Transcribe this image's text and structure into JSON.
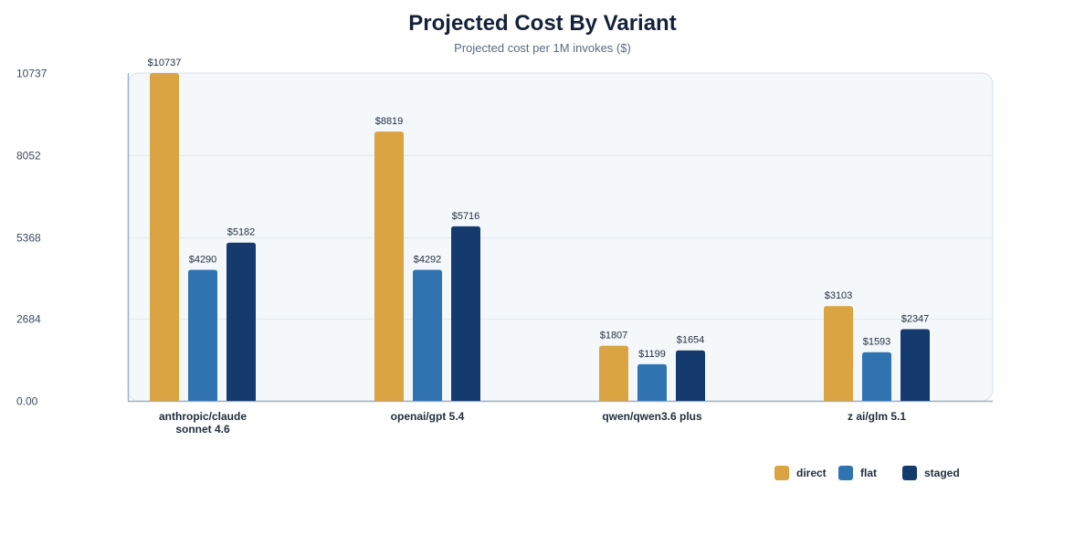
{
  "chart_data": {
    "type": "bar",
    "title": "Projected Cost By Variant",
    "subtitle": "Projected cost per 1M invokes ($)",
    "xlabel": "",
    "ylabel": "",
    "ylim": [
      0,
      10737
    ],
    "yticks": [
      0,
      2684,
      5368,
      8052,
      10737
    ],
    "ytick_labels": [
      "0.00",
      "2684",
      "5368",
      "8052",
      "10737"
    ],
    "value_prefix": "$",
    "categories": [
      [
        "anthropic/claude",
        "sonnet 4.6"
      ],
      [
        "openai/gpt 5.4"
      ],
      [
        "qwen/qwen3.6 plus"
      ],
      [
        "z ai/glm 5.1"
      ]
    ],
    "series": [
      {
        "name": "direct",
        "color": "#d9a441",
        "values": [
          10737,
          8819,
          1807,
          3103
        ]
      },
      {
        "name": "flat",
        "color": "#2f73b0",
        "values": [
          4290,
          4292,
          1199,
          1593
        ]
      },
      {
        "name": "staged",
        "color": "#143a6e",
        "values": [
          5182,
          5716,
          1654,
          2347
        ]
      }
    ],
    "legend_position": "bottom-right",
    "grid": true
  }
}
